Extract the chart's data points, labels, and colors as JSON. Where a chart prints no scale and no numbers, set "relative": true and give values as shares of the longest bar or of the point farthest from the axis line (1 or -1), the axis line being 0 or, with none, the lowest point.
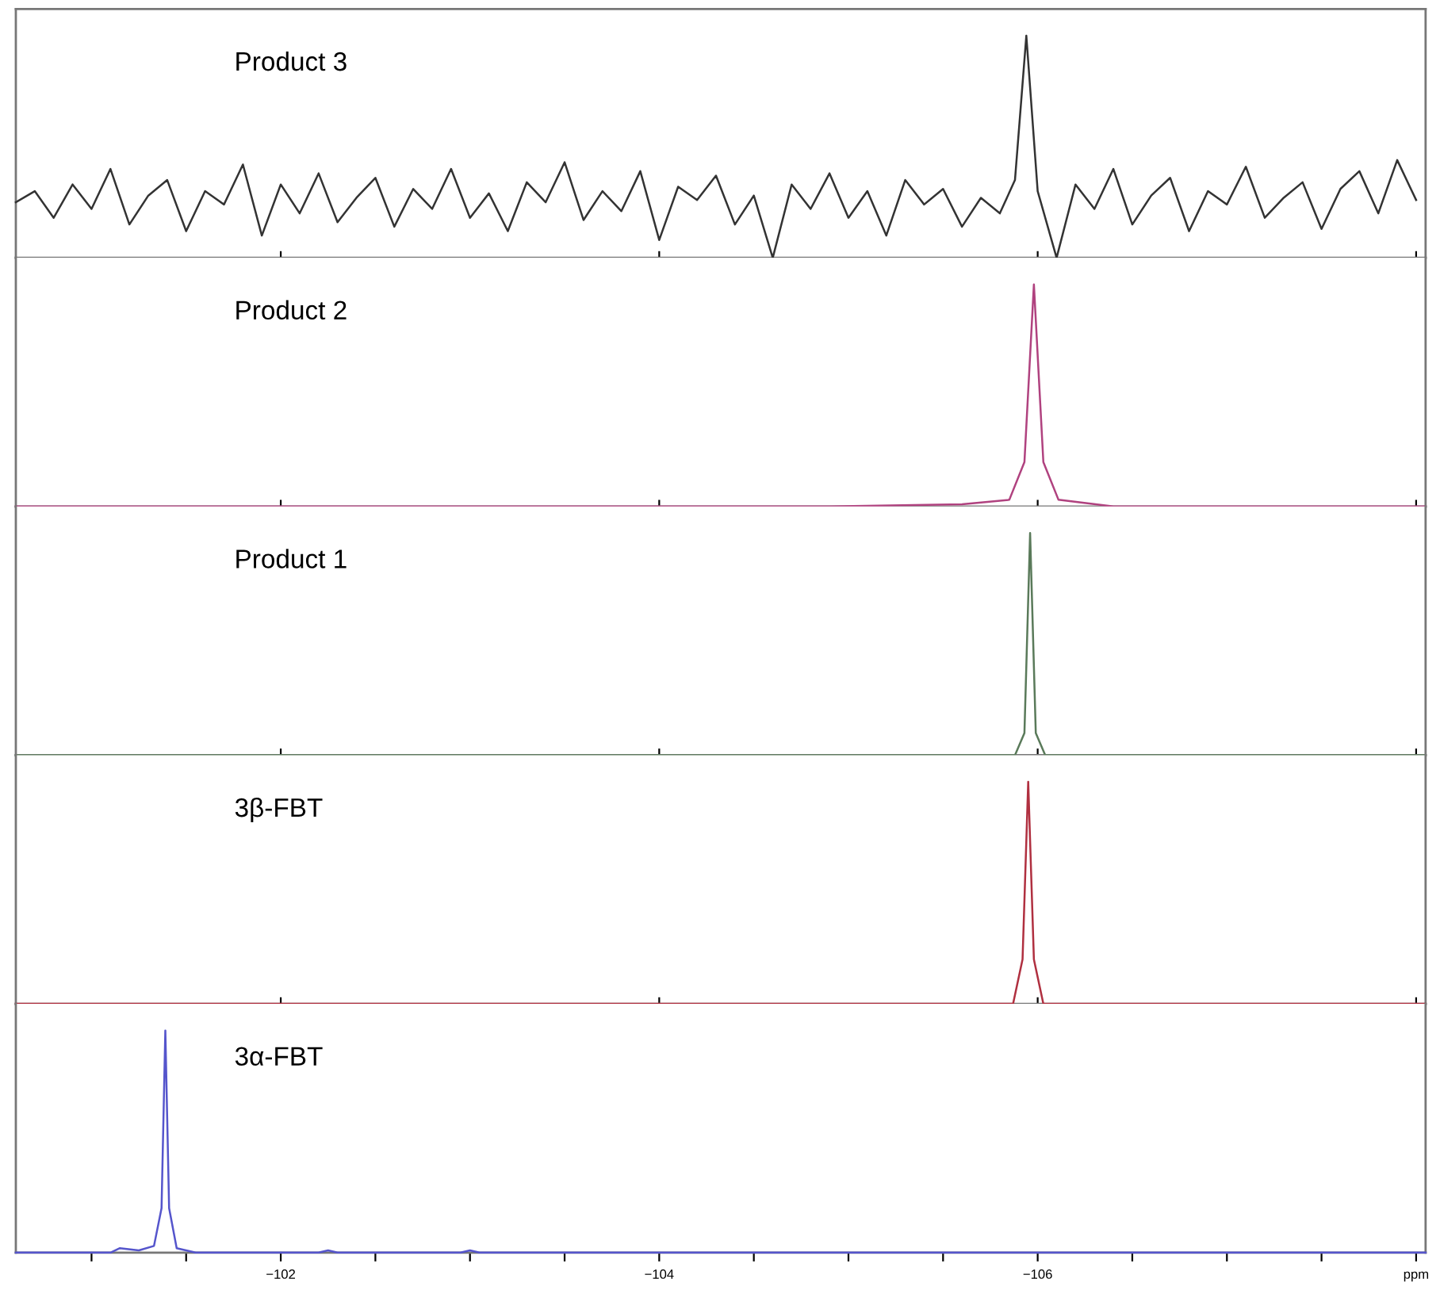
{
  "chart_data": [
    {
      "type": "line",
      "relative": true,
      "tick_labels": false,
      "xlim": [
        -100.6,
        -108.05
      ],
      "series": [
        {
          "name": "Product 3",
          "color": "#333333",
          "x": [
            -100.6,
            -100.7,
            -100.8,
            -100.9,
            -101.0,
            -101.1,
            -101.2,
            -101.3,
            -101.4,
            -101.5,
            -101.6,
            -101.7,
            -101.8,
            -101.9,
            -102.0,
            -102.1,
            -102.2,
            -102.3,
            -102.4,
            -102.5,
            -102.6,
            -102.7,
            -102.8,
            -102.9,
            -103.0,
            -103.1,
            -103.2,
            -103.3,
            -103.4,
            -103.5,
            -103.6,
            -103.7,
            -103.8,
            -103.9,
            -104.0,
            -104.1,
            -104.2,
            -104.3,
            -104.4,
            -104.5,
            -104.6,
            -104.7,
            -104.8,
            -104.9,
            -105.0,
            -105.1,
            -105.2,
            -105.3,
            -105.4,
            -105.5,
            -105.6,
            -105.7,
            -105.8,
            -105.88,
            -105.94,
            -106.0,
            -106.1,
            -106.2,
            -106.3,
            -106.4,
            -106.5,
            -106.6,
            -106.7,
            -106.8,
            -106.9,
            -107.0,
            -107.1,
            -107.2,
            -107.3,
            -107.4,
            -107.5,
            -107.6,
            -107.7,
            -107.8,
            -107.9,
            -108.0
          ],
          "values": [
            0.25,
            0.3,
            0.18,
            0.33,
            0.22,
            0.4,
            0.15,
            0.28,
            0.35,
            0.12,
            0.3,
            0.24,
            0.42,
            0.1,
            0.33,
            0.2,
            0.38,
            0.16,
            0.27,
            0.36,
            0.14,
            0.31,
            0.22,
            0.4,
            0.18,
            0.29,
            0.12,
            0.34,
            0.25,
            0.43,
            0.17,
            0.3,
            0.21,
            0.39,
            0.08,
            0.32,
            0.26,
            0.37,
            0.15,
            0.28,
            0.0,
            0.33,
            0.22,
            0.38,
            0.18,
            0.3,
            0.1,
            0.35,
            0.24,
            0.31,
            0.14,
            0.27,
            0.2,
            0.35,
            1.0,
            0.3,
            0.0,
            0.33,
            0.22,
            0.4,
            0.15,
            0.28,
            0.36,
            0.12,
            0.3,
            0.24,
            0.41,
            0.18,
            0.27,
            0.34,
            0.13,
            0.31,
            0.39,
            0.2,
            0.44,
            0.26
          ]
        }
      ],
      "xticks": [
        {
          "value": -102,
          "label": null
        },
        {
          "value": -104,
          "label": null
        },
        {
          "value": -106,
          "label": null
        },
        {
          "value": -108,
          "label": null
        }
      ]
    },
    {
      "type": "line",
      "relative": true,
      "tick_labels": false,
      "xlim": [
        -100.6,
        -108.05
      ],
      "series": [
        {
          "name": "Product 2",
          "color": "#b0427f",
          "x": [
            -100.6,
            -104.9,
            -105.6,
            -105.85,
            -105.93,
            -105.98,
            -106.03,
            -106.11,
            -106.4,
            -108.05
          ],
          "values": [
            0,
            0,
            0.01,
            0.03,
            0.2,
            1,
            0.2,
            0.03,
            0,
            0
          ]
        }
      ],
      "xticks": [
        {
          "value": -102,
          "label": null
        },
        {
          "value": -104,
          "label": null
        },
        {
          "value": -106,
          "label": null
        },
        {
          "value": -108,
          "label": null
        }
      ]
    },
    {
      "type": "line",
      "relative": true,
      "tick_labels": false,
      "xlim": [
        -100.6,
        -108.05
      ],
      "series": [
        {
          "name": "Product 1",
          "color": "#5a7a5a",
          "x": [
            -100.6,
            -105.88,
            -105.93,
            -105.96,
            -105.99,
            -106.04,
            -108.05
          ],
          "values": [
            0,
            0,
            0.1,
            1,
            0.1,
            0,
            0
          ]
        }
      ],
      "xticks": [
        {
          "value": -102,
          "label": null
        },
        {
          "value": -104,
          "label": null
        },
        {
          "value": -106,
          "label": null
        },
        {
          "value": -108,
          "label": null
        }
      ]
    },
    {
      "type": "line",
      "relative": true,
      "tick_labels": false,
      "xlim": [
        -100.6,
        -108.05
      ],
      "series": [
        {
          "name": "3β-FBT",
          "color": "#b03040",
          "x": [
            -100.6,
            -105.87,
            -105.92,
            -105.95,
            -105.98,
            -106.03,
            -108.05
          ],
          "values": [
            0,
            0,
            0.2,
            1,
            0.2,
            0,
            0
          ]
        }
      ],
      "xticks": [
        {
          "value": -102,
          "label": null
        },
        {
          "value": -104,
          "label": null
        },
        {
          "value": -106,
          "label": null
        },
        {
          "value": -108,
          "label": null
        }
      ]
    },
    {
      "type": "line",
      "relative": true,
      "tick_labels": "x",
      "xlim": [
        -100.6,
        -108.05
      ],
      "series": [
        {
          "name": "3α-FBT",
          "color": "#5555cc",
          "x": [
            -100.6,
            -101.1,
            -101.15,
            -101.25,
            -101.33,
            -101.37,
            -101.39,
            -101.41,
            -101.45,
            -101.55,
            -102.2,
            -102.25,
            -102.3,
            -102.95,
            -103.0,
            -103.05,
            -108.05
          ],
          "values": [
            0,
            0,
            0.02,
            0.01,
            0.03,
            0.2,
            1,
            0.2,
            0.02,
            0,
            0,
            0.01,
            0,
            0,
            0.01,
            0,
            0
          ]
        }
      ],
      "xticks": [
        {
          "value": -101,
          "label": null
        },
        {
          "value": -101.5,
          "label": null
        },
        -102,
        {
          "value": -102.5,
          "label": null
        },
        {
          "value": -103,
          "label": null
        },
        {
          "value": -103.5,
          "label": null
        },
        -104,
        {
          "value": -104.5,
          "label": null
        },
        {
          "value": -105,
          "label": null
        },
        {
          "value": -105.5,
          "label": null
        },
        -106,
        {
          "value": -106.5,
          "label": null
        },
        {
          "value": -107,
          "label": null
        },
        {
          "value": -107.5,
          "label": null
        },
        {
          "value": -108,
          "label": "ppm"
        }
      ]
    }
  ]
}
